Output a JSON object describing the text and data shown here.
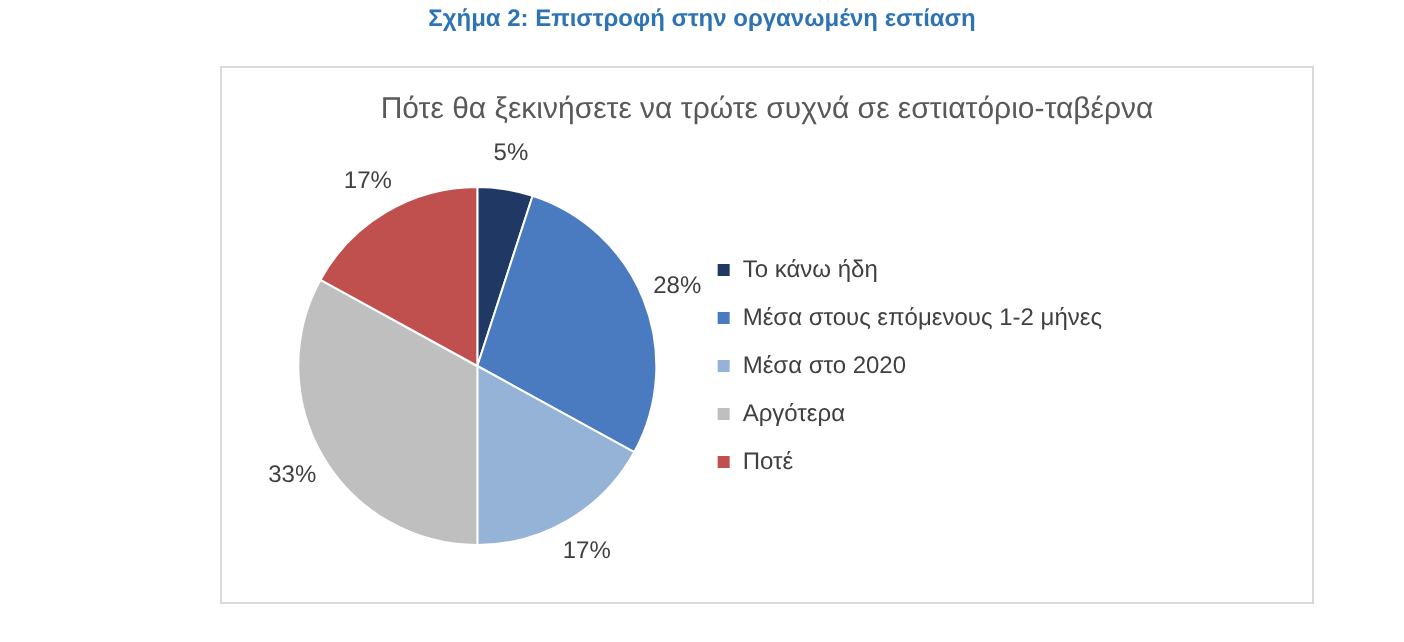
{
  "chart_data": {
    "type": "pie",
    "title": "Σχήμα 2: Επιστροφή στην οργανωμένη εστίαση",
    "subtitle": "Πότε θα ξεκινήσετε να τρώτε συχνά σε εστιατόριο-ταβέρνα",
    "categories": [
      "Το κάνω ήδη",
      "Μέσα στους επόμενους 1-2 μήνες",
      "Μέσα στο 2020",
      "Αργότερα",
      "Ποτέ"
    ],
    "values": [
      5,
      28,
      17,
      33,
      17
    ],
    "value_labels": [
      "5%",
      "28%",
      "17%",
      "33%",
      "17%"
    ],
    "colors": [
      "#1f3864",
      "#4a7bc0",
      "#95b3d7",
      "#bfbfbf",
      "#c0504d"
    ],
    "legend": "right"
  }
}
